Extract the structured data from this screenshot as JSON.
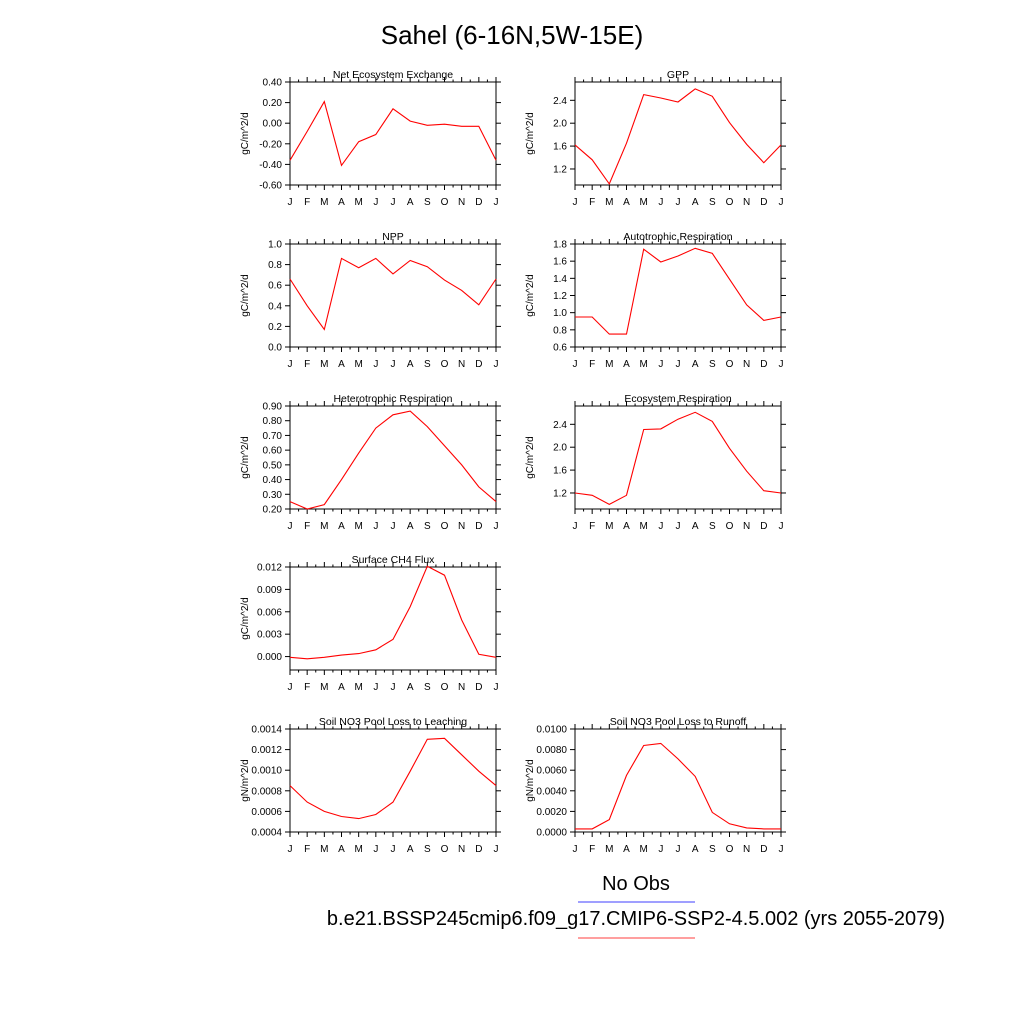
{
  "figure": {
    "title": "Sahel (6-16N,5W-15E)",
    "legend": [
      {
        "label": "No Obs",
        "color": "#6666ff"
      },
      {
        "label": "b.e21.BSSP245cmip6.f09_g17.CMIP6-SSP2-4.5.002 (yrs 2055-2079)",
        "color": "#ff6666"
      }
    ]
  },
  "chart_data": [
    {
      "type": "line",
      "title": "Net Ecosystem Exchange",
      "ylabel": "gC/m^2/d",
      "categories": [
        "J",
        "F",
        "M",
        "A",
        "M",
        "J",
        "J",
        "A",
        "S",
        "O",
        "N",
        "D",
        "J"
      ],
      "ylim": [
        -0.6,
        0.4
      ],
      "yticks": [
        "0.40",
        "0.20",
        "0.00",
        "-0.20",
        "-0.40",
        "-0.60"
      ],
      "series": [
        {
          "color": "#ff0000",
          "values": [
            -0.36,
            -0.08,
            0.21,
            -0.41,
            -0.18,
            -0.11,
            0.14,
            0.02,
            -0.02,
            -0.01,
            -0.03,
            -0.03,
            -0.36
          ]
        }
      ]
    },
    {
      "type": "line",
      "title": "GPP",
      "ylabel": "gC/m^2/d",
      "categories": [
        "J",
        "F",
        "M",
        "A",
        "M",
        "J",
        "J",
        "A",
        "S",
        "O",
        "N",
        "D",
        "J"
      ],
      "ylim": [
        0.92,
        2.72
      ],
      "yticks": [
        "2.4",
        "2.0",
        "1.6",
        "1.2"
      ],
      "series": [
        {
          "color": "#ff0000",
          "values": [
            1.62,
            1.36,
            0.94,
            1.65,
            2.5,
            2.44,
            2.37,
            2.6,
            2.47,
            2.01,
            1.63,
            1.31,
            1.62
          ]
        }
      ]
    },
    {
      "type": "line",
      "title": "NPP",
      "ylabel": "gC/m^2/d",
      "categories": [
        "J",
        "F",
        "M",
        "A",
        "M",
        "J",
        "J",
        "A",
        "S",
        "O",
        "N",
        "D",
        "J"
      ],
      "ylim": [
        0,
        1
      ],
      "yticks": [
        "1.0",
        "0.8",
        "0.6",
        "0.4",
        "0.2",
        "0.0"
      ],
      "series": [
        {
          "color": "#ff0000",
          "values": [
            0.66,
            0.4,
            0.17,
            0.86,
            0.77,
            0.86,
            0.71,
            0.84,
            0.78,
            0.65,
            0.55,
            0.41,
            0.66
          ]
        }
      ]
    },
    {
      "type": "line",
      "title": "Autotrophic Respiration",
      "ylabel": "gC/m^2/d",
      "categories": [
        "J",
        "F",
        "M",
        "A",
        "M",
        "J",
        "J",
        "A",
        "S",
        "O",
        "N",
        "D",
        "J"
      ],
      "ylim": [
        0.6,
        1.8
      ],
      "yticks": [
        "1.8",
        "1.6",
        "1.4",
        "1.2",
        "1.0",
        "0.8",
        "0.6"
      ],
      "series": [
        {
          "color": "#ff0000",
          "values": [
            0.95,
            0.95,
            0.75,
            0.75,
            1.74,
            1.59,
            1.66,
            1.75,
            1.69,
            1.39,
            1.09,
            0.91,
            0.95
          ]
        }
      ]
    },
    {
      "type": "line",
      "title": "Heterotrophic Respiration",
      "ylabel": "gC/m^2/d",
      "categories": [
        "J",
        "F",
        "M",
        "A",
        "M",
        "J",
        "J",
        "A",
        "S",
        "O",
        "N",
        "D",
        "J"
      ],
      "ylim": [
        0.2,
        0.9
      ],
      "yticks": [
        "0.90",
        "0.80",
        "0.70",
        "0.60",
        "0.50",
        "0.40",
        "0.30",
        "0.20"
      ],
      "series": [
        {
          "color": "#ff0000",
          "values": [
            0.25,
            0.2,
            0.23,
            0.4,
            0.58,
            0.75,
            0.84,
            0.865,
            0.76,
            0.63,
            0.5,
            0.35,
            0.25
          ]
        }
      ]
    },
    {
      "type": "line",
      "title": "Ecosystem Respiration",
      "ylabel": "gC/m^2/d",
      "categories": [
        "J",
        "F",
        "M",
        "A",
        "M",
        "J",
        "J",
        "A",
        "S",
        "O",
        "N",
        "D",
        "J"
      ],
      "ylim": [
        0.92,
        2.72
      ],
      "yticks": [
        "2.4",
        "2.0",
        "1.6",
        "1.2"
      ],
      "series": [
        {
          "color": "#ff0000",
          "values": [
            1.2,
            1.16,
            1.0,
            1.16,
            2.31,
            2.32,
            2.49,
            2.61,
            2.45,
            1.98,
            1.58,
            1.24,
            1.2
          ]
        }
      ]
    },
    {
      "type": "line",
      "title": "Surface CH4 Flux",
      "ylabel": "gC/m^2/d",
      "categories": [
        "J",
        "F",
        "M",
        "A",
        "M",
        "J",
        "J",
        "A",
        "S",
        "O",
        "N",
        "D",
        "J"
      ],
      "ylim": [
        -0.0018,
        0.012
      ],
      "yticks": [
        "0.012",
        "0.009",
        "0.006",
        "0.003",
        "0.000"
      ],
      "series": [
        {
          "color": "#ff0000",
          "values": [
            -0.0001,
            -0.0003,
            -0.0001,
            0.0002,
            0.0004,
            0.0009,
            0.0023,
            0.0067,
            0.0121,
            0.0109,
            0.0049,
            0.0003,
            -0.0001
          ]
        }
      ]
    },
    {
      "type": "line",
      "title": "Soil NO3 Pool Loss to Leaching",
      "ylabel": "gN/m^2/d",
      "categories": [
        "J",
        "F",
        "M",
        "A",
        "M",
        "J",
        "J",
        "A",
        "S",
        "O",
        "N",
        "D",
        "J"
      ],
      "ylim": [
        0.0004,
        0.0014
      ],
      "yticks": [
        "0.0014",
        "0.0012",
        "0.0010",
        "0.0008",
        "0.0006",
        "0.0004"
      ],
      "series": [
        {
          "color": "#ff0000",
          "values": [
            0.00085,
            0.00069,
            0.0006,
            0.00055,
            0.00053,
            0.00057,
            0.00069,
            0.00099,
            0.0013,
            0.00131,
            0.00115,
            0.00099,
            0.00085
          ]
        }
      ]
    },
    {
      "type": "line",
      "title": "Soil NO3 Pool Loss to Runoff",
      "ylabel": "gN/m^2/d",
      "categories": [
        "J",
        "F",
        "M",
        "A",
        "M",
        "J",
        "J",
        "A",
        "S",
        "O",
        "N",
        "D",
        "J"
      ],
      "ylim": [
        0,
        0.01
      ],
      "yticks": [
        "0.0100",
        "0.0080",
        "0.0060",
        "0.0040",
        "0.0020",
        "0.0000"
      ],
      "series": [
        {
          "color": "#ff0000",
          "values": [
            0.0003,
            0.0003,
            0.0012,
            0.0055,
            0.0084,
            0.0086,
            0.0071,
            0.0054,
            0.0019,
            0.0008,
            0.0004,
            0.0003,
            0.0003
          ]
        }
      ]
    }
  ]
}
